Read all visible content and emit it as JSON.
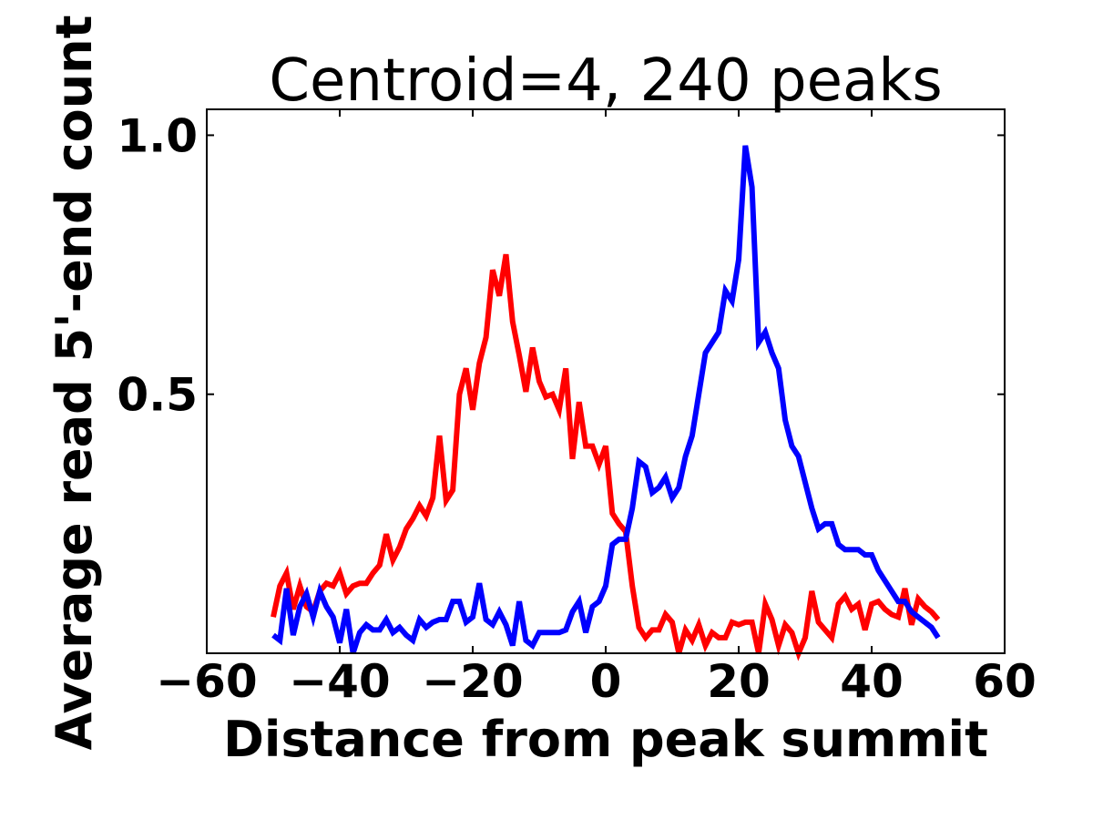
{
  "chart_data": {
    "type": "line",
    "title": "Centroid=4, 240 peaks",
    "xlabel": "Distance from peak summit",
    "ylabel": "Average read 5'-end count",
    "xlim": [
      -60,
      60
    ],
    "ylim": [
      0.0,
      1.05
    ],
    "x_ticks": [
      -60,
      -40,
      -20,
      0,
      20,
      40,
      60
    ],
    "x_tick_labels": [
      "−60",
      "−40",
      "−20",
      "0",
      "20",
      "40",
      "60"
    ],
    "y_ticks": [
      0.5,
      1.0
    ],
    "y_tick_labels": [
      "0.5",
      "1.0"
    ],
    "grid": false,
    "legend": "none",
    "x": [
      -50,
      -49,
      -48,
      -47,
      -46,
      -45,
      -44,
      -43,
      -42,
      -41,
      -40,
      -39,
      -38,
      -37,
      -36,
      -35,
      -34,
      -33,
      -32,
      -31,
      -30,
      -29,
      -28,
      -27,
      -26,
      -25,
      -24,
      -23,
      -22,
      -21,
      -20,
      -19,
      -18,
      -17,
      -16,
      -15,
      -14,
      -13,
      -12,
      -11,
      -10,
      -9,
      -8,
      -7,
      -6,
      -5,
      -4,
      -3,
      -2,
      -1,
      0,
      1,
      2,
      3,
      4,
      5,
      6,
      7,
      8,
      9,
      10,
      11,
      12,
      13,
      14,
      15,
      16,
      17,
      18,
      19,
      20,
      21,
      22,
      23,
      24,
      25,
      26,
      27,
      28,
      29,
      30,
      31,
      32,
      33,
      34,
      35,
      36,
      37,
      38,
      39,
      40,
      41,
      42,
      43,
      44,
      45,
      46,
      47,
      48,
      49,
      50
    ],
    "series": [
      {
        "color": "#ff0000",
        "values": [
          0.07,
          0.13,
          0.155,
          0.085,
          0.13,
          0.09,
          0.08,
          0.12,
          0.135,
          0.13,
          0.155,
          0.115,
          0.13,
          0.135,
          0.135,
          0.155,
          0.17,
          0.23,
          0.18,
          0.205,
          0.24,
          0.26,
          0.285,
          0.265,
          0.3,
          0.42,
          0.295,
          0.315,
          0.5,
          0.55,
          0.47,
          0.56,
          0.61,
          0.74,
          0.69,
          0.77,
          0.64,
          0.575,
          0.505,
          0.59,
          0.525,
          0.495,
          0.5,
          0.47,
          0.55,
          0.375,
          0.485,
          0.4,
          0.4,
          0.365,
          0.4,
          0.27,
          0.25,
          0.235,
          0.13,
          0.05,
          0.03,
          0.045,
          0.045,
          0.075,
          0.06,
          0.0,
          0.045,
          0.025,
          0.055,
          0.015,
          0.04,
          0.03,
          0.03,
          0.06,
          0.055,
          0.06,
          0.06,
          0.0,
          0.095,
          0.065,
          0.015,
          0.055,
          0.04,
          0.0,
          0.03,
          0.12,
          0.06,
          0.045,
          0.03,
          0.095,
          0.11,
          0.085,
          0.095,
          0.045,
          0.095,
          0.1,
          0.085,
          0.075,
          0.07,
          0.125,
          0.055,
          0.105,
          0.09,
          0.08,
          0.065
        ]
      },
      {
        "color": "#0000ff",
        "values": [
          0.035,
          0.025,
          0.125,
          0.035,
          0.09,
          0.115,
          0.07,
          0.12,
          0.09,
          0.07,
          0.02,
          0.085,
          0.0,
          0.04,
          0.055,
          0.045,
          0.045,
          0.065,
          0.04,
          0.05,
          0.035,
          0.025,
          0.065,
          0.05,
          0.06,
          0.065,
          0.065,
          0.1,
          0.1,
          0.06,
          0.07,
          0.135,
          0.065,
          0.055,
          0.08,
          0.055,
          0.015,
          0.1,
          0.025,
          0.015,
          0.04,
          0.04,
          0.04,
          0.04,
          0.045,
          0.08,
          0.1,
          0.04,
          0.09,
          0.1,
          0.13,
          0.21,
          0.22,
          0.22,
          0.28,
          0.37,
          0.36,
          0.31,
          0.32,
          0.34,
          0.3,
          0.32,
          0.38,
          0.42,
          0.5,
          0.58,
          0.6,
          0.62,
          0.7,
          0.68,
          0.76,
          0.98,
          0.9,
          0.6,
          0.62,
          0.58,
          0.55,
          0.45,
          0.4,
          0.38,
          0.33,
          0.28,
          0.24,
          0.25,
          0.25,
          0.21,
          0.2,
          0.2,
          0.2,
          0.19,
          0.19,
          0.16,
          0.14,
          0.12,
          0.1,
          0.1,
          0.08,
          0.07,
          0.06,
          0.05,
          0.03
        ]
      }
    ]
  }
}
